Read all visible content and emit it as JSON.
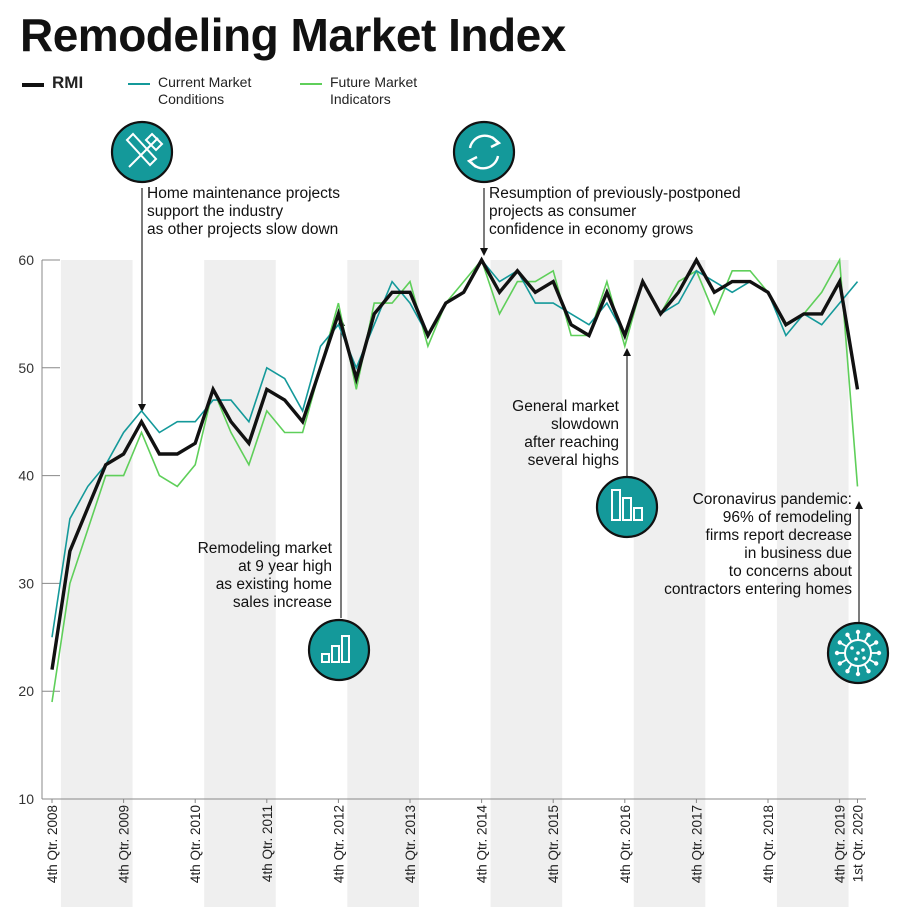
{
  "title": "Remodeling Market Index",
  "legend": [
    {
      "name": "RMI",
      "color": "#111111"
    },
    {
      "name": "Current Market Conditions",
      "color": "#14999a"
    },
    {
      "name": "Future Market Indicators",
      "color": "#5fcf5a"
    }
  ],
  "colors": {
    "rmi": "#111111",
    "cmc": "#14999a",
    "fmi": "#5fcf5a",
    "band": "#efefef",
    "icon_fill": "#14999a"
  },
  "annotations": [
    {
      "lines": [
        "Home maintenance projects",
        "support the industry",
        "as other projects slow down"
      ],
      "icon": "tools-icon"
    },
    {
      "lines": [
        "Resumption of previously-postponed",
        "projects as consumer",
        "confidence in economy grows"
      ],
      "icon": "refresh-cycle-icon"
    },
    {
      "lines": [
        "Remodeling market",
        "at 9 year high",
        "as existing home",
        "sales increase"
      ],
      "icon": "rising-bars-icon"
    },
    {
      "lines": [
        "General market",
        "slowdown",
        "after reaching",
        "several highs"
      ],
      "icon": "falling-bars-icon"
    },
    {
      "lines": [
        "Coronavirus pandemic:",
        "96% of remodeling",
        "firms report decrease",
        "in business due",
        "to concerns about",
        "contractors entering homes"
      ],
      "icon": "virus-icon"
    }
  ],
  "chart_data": {
    "type": "line",
    "ylim": [
      10,
      60
    ],
    "yticks": [
      10,
      20,
      30,
      40,
      50,
      60
    ],
    "grid": false,
    "xtick_labels": [
      "4th Qtr. 2008",
      "4th Qtr. 2009",
      "4th Qtr. 2010",
      "4th Qtr. 2011",
      "4th Qtr. 2012",
      "4th Qtr. 2013",
      "4th Qtr. 2014",
      "4th Qtr. 2015",
      "4th Qtr. 2016",
      "4th Qtr. 2017",
      "4th Qtr. 2018",
      "4th Qtr. 2019",
      "1st Qtr. 2020"
    ],
    "series": [
      {
        "name": "RMI",
        "values": [
          22,
          33,
          37,
          41,
          42,
          45,
          42,
          42,
          43,
          48,
          45,
          43,
          48,
          47,
          45,
          50,
          55,
          49,
          55,
          57,
          57,
          53,
          56,
          57,
          60,
          57,
          59,
          57,
          58,
          54,
          53,
          57,
          53,
          58,
          55,
          57,
          60,
          57,
          58,
          58,
          57,
          54,
          55,
          55,
          58,
          48
        ]
      },
      {
        "name": "Current Market Conditions",
        "values": [
          25,
          36,
          39,
          41,
          44,
          46,
          44,
          45,
          45,
          47,
          47,
          45,
          50,
          49,
          46,
          52,
          54,
          50,
          54,
          58,
          56,
          53,
          56,
          57,
          60,
          58,
          59,
          56,
          56,
          55,
          54,
          56,
          53,
          58,
          55,
          56,
          59,
          58,
          57,
          58,
          57,
          53,
          55,
          54,
          56,
          58
        ]
      },
      {
        "name": "Future Market Indicators",
        "values": [
          19,
          30,
          35,
          40,
          40,
          44,
          40,
          39,
          41,
          48,
          44,
          41,
          46,
          44,
          44,
          50,
          56,
          48,
          56,
          56,
          58,
          52,
          56,
          58,
          60,
          55,
          58,
          58,
          59,
          53,
          53,
          58,
          52,
          58,
          55,
          58,
          59,
          55,
          59,
          59,
          57,
          54,
          55,
          57,
          60,
          39
        ]
      }
    ]
  }
}
